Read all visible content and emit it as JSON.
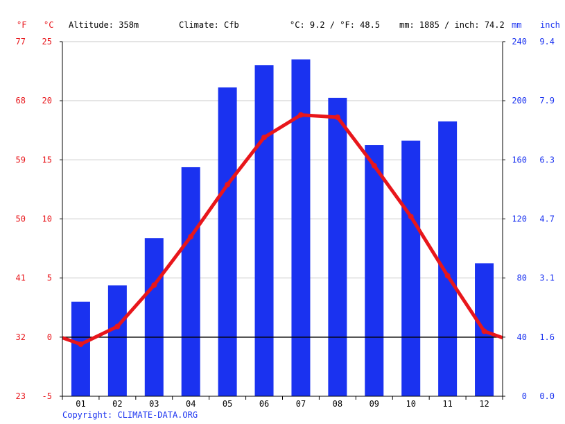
{
  "header": {
    "unit_f": "°F",
    "unit_c": "°C",
    "altitude": "Altitude: 358m",
    "climate": "Climate: Cfb",
    "temp_avg": "°C: 9.2 / °F: 48.5",
    "precip_total": "mm: 1885 / inch: 74.2",
    "unit_mm": "mm",
    "unit_inch": "inch"
  },
  "axes": {
    "f_ticks": [
      "77",
      "68",
      "59",
      "50",
      "41",
      "32",
      "23"
    ],
    "c_ticks": [
      "25",
      "20",
      "15",
      "10",
      "5",
      "0",
      "-5"
    ],
    "mm_ticks": [
      "240",
      "200",
      "160",
      "120",
      "80",
      "40",
      "0"
    ],
    "inch_ticks": [
      "9.4",
      "7.9",
      "6.3",
      "4.7",
      "3.1",
      "1.6",
      "0.0"
    ]
  },
  "colors": {
    "temperature": "#e8161b",
    "precipitation": "#1a32f0",
    "grid": "#c8c8c8"
  },
  "chart_data": {
    "type": "bar",
    "categories": [
      "01",
      "02",
      "03",
      "04",
      "05",
      "06",
      "07",
      "08",
      "09",
      "10",
      "11",
      "12"
    ],
    "series": [
      {
        "type": "bar",
        "axis": "mm",
        "values": [
          64,
          75,
          107,
          155,
          209,
          224,
          228,
          202,
          170,
          173,
          186,
          90
        ]
      },
      {
        "type": "line",
        "axis": "°C",
        "values": [
          -0.6,
          0.9,
          4.4,
          8.5,
          12.9,
          16.9,
          18.8,
          18.6,
          14.5,
          10.2,
          5.2,
          0.5
        ]
      }
    ],
    "c_lim": [
      -5,
      25
    ],
    "mm_lim": [
      0,
      240
    ],
    "grid": true
  },
  "footer": {
    "copyright": "Copyright: CLIMATE-DATA.ORG"
  }
}
